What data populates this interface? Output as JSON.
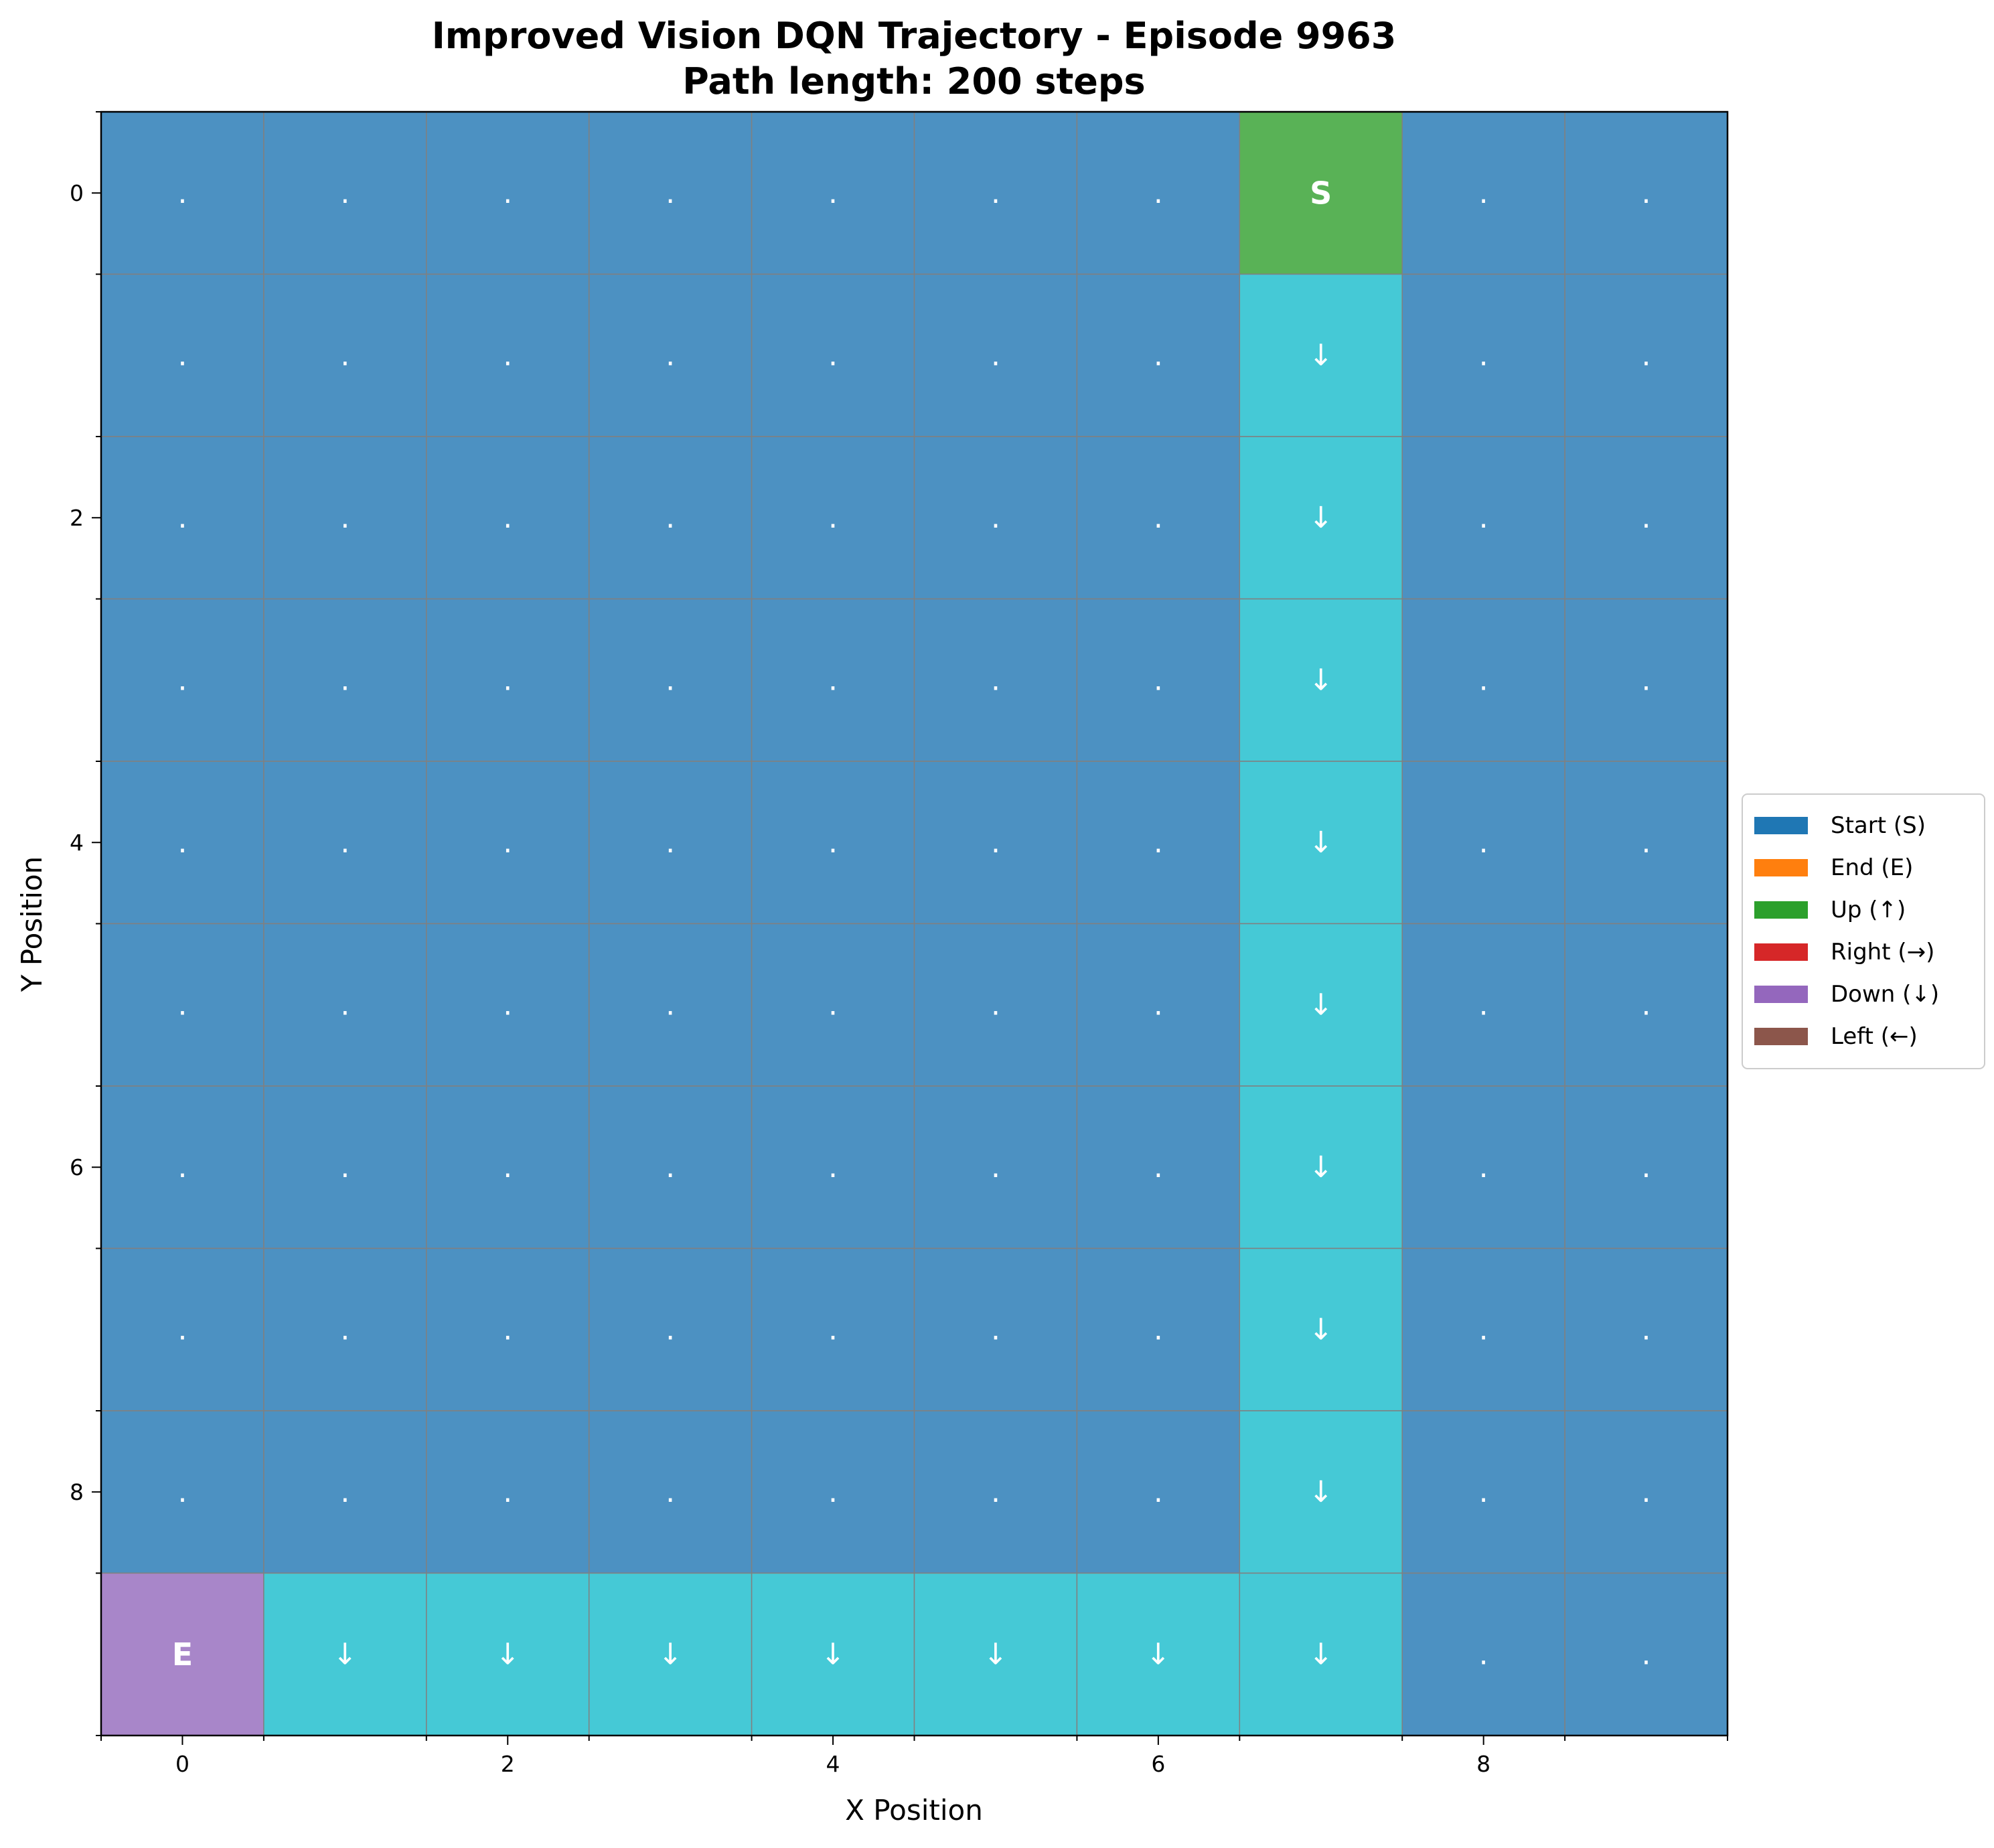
{
  "chart_data": {
    "type": "heatmap",
    "title": "Improved Vision DQN Trajectory - Episode 9963",
    "subtitle": "Path length: 200 steps",
    "xlabel": "X Position",
    "ylabel": "Y Position",
    "grid_size": [
      10,
      10
    ],
    "xlim": [
      -0.5,
      9.5
    ],
    "ylim": [
      9.5,
      -0.5
    ],
    "x_tick_labels": [
      "0",
      "2",
      "4",
      "6",
      "8"
    ],
    "x_tick_values": [
      0,
      2,
      4,
      6,
      8
    ],
    "y_tick_labels": [
      "0",
      "2",
      "4",
      "6",
      "8"
    ],
    "y_tick_values": [
      0,
      2,
      4,
      6,
      8
    ],
    "grid": true,
    "legend_position": "center-right",
    "legend": [
      {
        "label": "Start (S)",
        "color": "#1f77b4"
      },
      {
        "label": "End (E)",
        "color": "#ff7f0e"
      },
      {
        "label": "Up (↑)",
        "color": "#2ca02c"
      },
      {
        "label": "Right (→)",
        "color": "#d62728"
      },
      {
        "label": "Down (↓)",
        "color": "#9467bd"
      },
      {
        "label": "Left (←)",
        "color": "#8c564b"
      }
    ],
    "cell_colors": {
      "empty": "#4c91c2",
      "start": "#59b256",
      "end": "#a886c9",
      "path": "#45c9d6",
      "grid_line": "#808080"
    },
    "start": {
      "x": 7,
      "y": 0,
      "label": "S"
    },
    "end": {
      "x": 0,
      "y": 9,
      "label": "E"
    },
    "empty_symbol": ".",
    "path_cells": [
      {
        "x": 7,
        "y": 1,
        "symbol": "↓"
      },
      {
        "x": 7,
        "y": 2,
        "symbol": "↓"
      },
      {
        "x": 7,
        "y": 3,
        "symbol": "↓"
      },
      {
        "x": 7,
        "y": 4,
        "symbol": "↓"
      },
      {
        "x": 7,
        "y": 5,
        "symbol": "↓"
      },
      {
        "x": 7,
        "y": 6,
        "symbol": "↓"
      },
      {
        "x": 7,
        "y": 7,
        "symbol": "↓"
      },
      {
        "x": 7,
        "y": 8,
        "symbol": "↓"
      },
      {
        "x": 7,
        "y": 9,
        "symbol": "↓"
      },
      {
        "x": 6,
        "y": 9,
        "symbol": "↓"
      },
      {
        "x": 5,
        "y": 9,
        "symbol": "↓"
      },
      {
        "x": 4,
        "y": 9,
        "symbol": "↓"
      },
      {
        "x": 3,
        "y": 9,
        "symbol": "↓"
      },
      {
        "x": 2,
        "y": 9,
        "symbol": "↓"
      },
      {
        "x": 1,
        "y": 9,
        "symbol": "↓"
      }
    ]
  }
}
